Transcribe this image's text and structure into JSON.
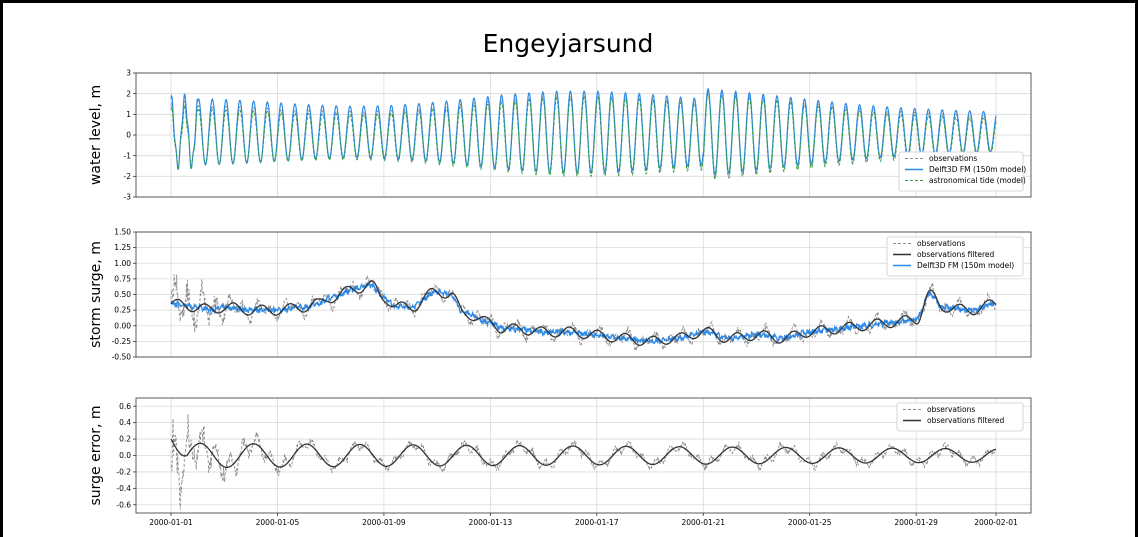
{
  "figure": {
    "title": "Engeyjarsund",
    "colors": {
      "observations": "#8c8c8c",
      "model": "#2e8ae6",
      "tide": "#2e9e3a",
      "filtered": "#333333"
    }
  },
  "chart_data": [
    {
      "type": "line",
      "ylabel": "water level, m",
      "ylim": [
        -3,
        3
      ],
      "yticks": [
        -3,
        -2,
        -1,
        0,
        1,
        2,
        3
      ],
      "xlim": [
        "2000-01-01",
        "2000-02-01"
      ],
      "grid": true,
      "legend_position": "bottom-right",
      "series": [
        {
          "name": "observations",
          "style": "dashed",
          "color": "#8c8c8c",
          "generator": {
            "kind": "tide",
            "mean": 0.0,
            "amp_start": 1.4,
            "amp_mid": 2.1,
            "amp_end": 1.0,
            "period_days": 0.5175,
            "phase": 0.0
          }
        },
        {
          "name": "Delft3D FM (150m model)",
          "style": "solid",
          "color": "#2e8ae6",
          "generator": {
            "kind": "tide",
            "mean": 0.15,
            "amp_start": 1.6,
            "amp_mid": 2.1,
            "amp_end": 1.05,
            "period_days": 0.5175,
            "phase": 0.0
          }
        },
        {
          "name": "astronomical tide (model)",
          "style": "dashed",
          "color": "#2e9e3a",
          "generator": {
            "kind": "tide",
            "mean": -0.1,
            "amp_start": 1.3,
            "amp_mid": 2.1,
            "amp_end": 0.95,
            "period_days": 0.5175,
            "phase": 0.0
          }
        }
      ]
    },
    {
      "type": "line",
      "ylabel": "storm surge, m",
      "ylim": [
        -0.5,
        1.5
      ],
      "yticks": [
        -0.5,
        -0.25,
        0.0,
        0.25,
        0.5,
        0.75,
        1.0,
        1.25,
        1.5
      ],
      "xlim": [
        "2000-01-01",
        "2000-02-01"
      ],
      "grid": true,
      "legend_position": "top-right",
      "anchor_days": [
        0,
        1,
        1.5,
        2,
        3,
        4,
        5,
        5.5,
        6,
        7,
        7.5,
        8,
        8.5,
        9,
        10,
        10.5,
        11,
        12,
        12.5,
        13,
        14,
        15,
        16,
        17,
        18,
        19,
        20,
        21,
        22,
        23,
        24,
        25,
        26,
        27,
        28,
        28.5,
        29,
        30,
        31
      ],
      "anchor_values": [
        0.35,
        0.3,
        0.25,
        0.3,
        0.25,
        0.25,
        0.3,
        0.35,
        0.45,
        0.6,
        0.65,
        0.45,
        0.3,
        0.3,
        0.55,
        0.5,
        0.2,
        0.05,
        -0.05,
        -0.05,
        -0.1,
        -0.1,
        -0.15,
        -0.2,
        -0.25,
        -0.2,
        -0.1,
        -0.2,
        -0.15,
        -0.2,
        -0.1,
        -0.05,
        0.0,
        0.05,
        0.1,
        0.5,
        0.3,
        0.25,
        0.35
      ],
      "series": [
        {
          "name": "observations",
          "style": "dashed",
          "color": "#8c8c8c",
          "generator": {
            "kind": "noisy",
            "noise_start": 0.55,
            "noise_decay_days": 1.2,
            "noise_base": 0.12,
            "osc_amp": 0.08
          }
        },
        {
          "name": "observations filtered",
          "style": "solid",
          "color": "#333333",
          "generator": {
            "kind": "smooth",
            "osc_amp": 0.08,
            "offset": 0.0
          }
        },
        {
          "name": "Delft3D FM (150m model)",
          "style": "solid",
          "color": "#2e8ae6",
          "generator": {
            "kind": "jitter",
            "jitter": 0.035,
            "offset": 0.0
          }
        }
      ]
    },
    {
      "type": "line",
      "ylabel": "surge error, m",
      "ylim": [
        -0.7,
        0.7
      ],
      "yticks": [
        -0.6,
        -0.4,
        -0.2,
        0.0,
        0.2,
        0.4,
        0.6
      ],
      "xlim": [
        "2000-01-01",
        "2000-02-01"
      ],
      "grid": true,
      "legend_position": "top-right",
      "series": [
        {
          "name": "observations",
          "style": "dashed",
          "color": "#8c8c8c",
          "generator": {
            "kind": "error_noisy",
            "noise_start": 0.5,
            "noise_decay_days": 1.5,
            "noise_base": 0.07
          }
        },
        {
          "name": "observations filtered",
          "style": "solid",
          "color": "#333333",
          "generator": {
            "kind": "error_smooth",
            "start_value": 0.2,
            "osc_amp_start": 0.15,
            "osc_amp_end": 0.08,
            "period_days": 2.0
          }
        }
      ]
    }
  ],
  "x_ticks": [
    "2000-01-01",
    "2000-01-05",
    "2000-01-09",
    "2000-01-13",
    "2000-01-17",
    "2000-01-21",
    "2000-01-25",
    "2000-01-29",
    "2000-02-01"
  ]
}
